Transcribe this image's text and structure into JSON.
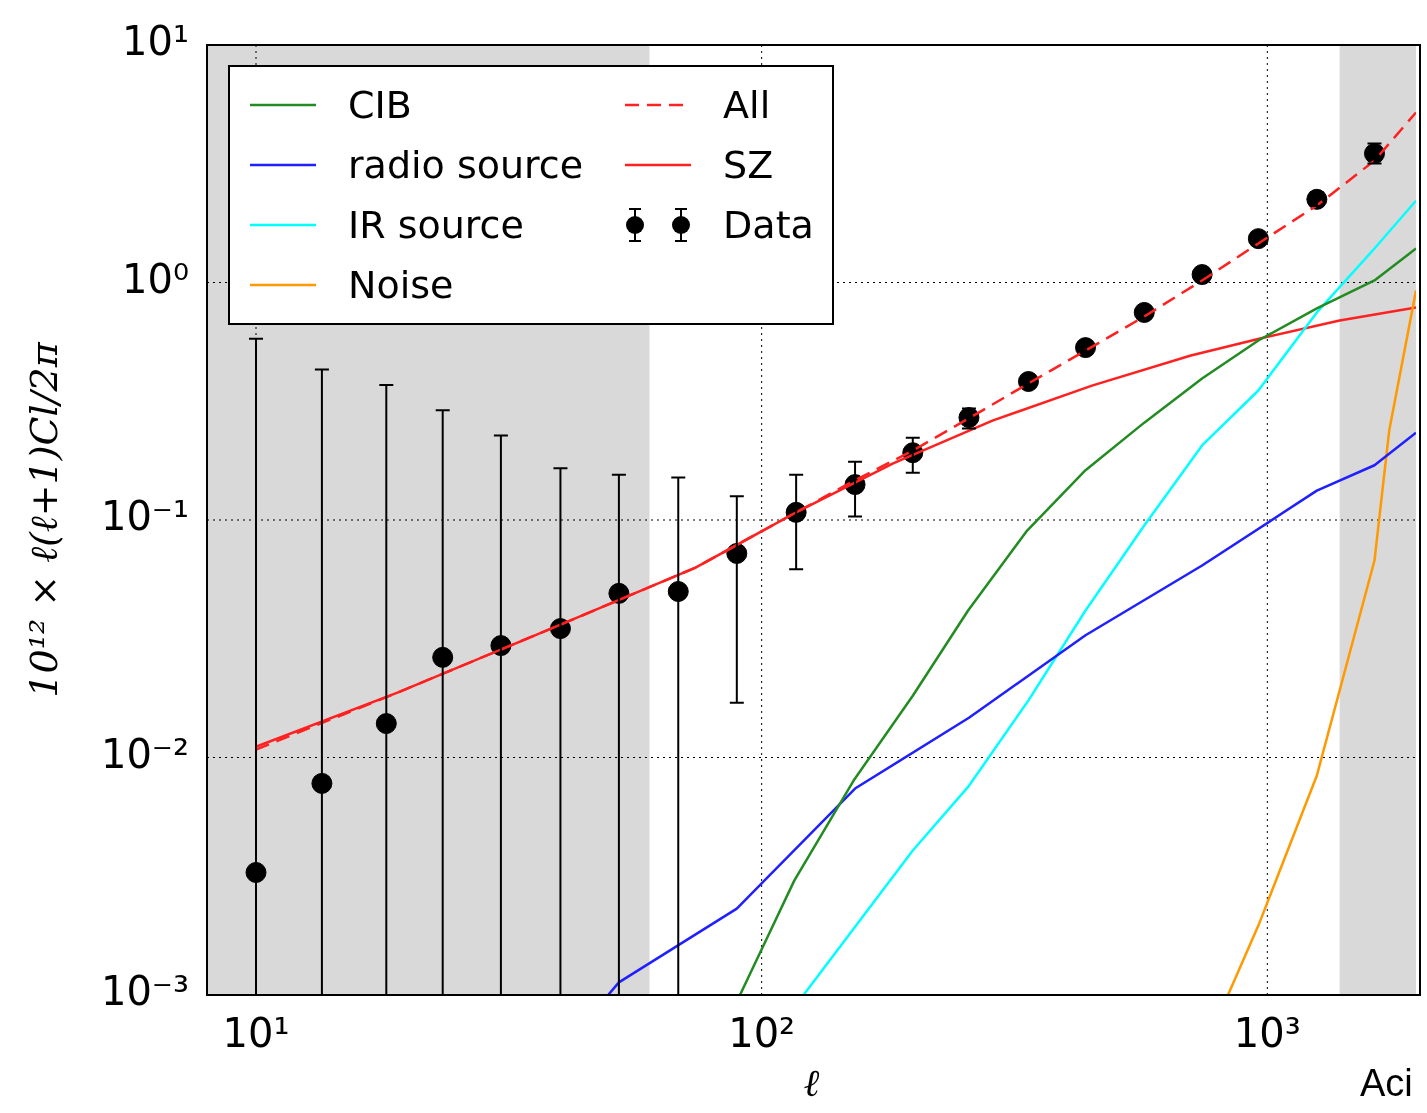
{
  "chart_data": {
    "type": "line",
    "xlabel": "ℓ",
    "ylabel": "10¹² × ℓ(ℓ+1)Cl/2π",
    "log": "xy",
    "grid": true,
    "legend": "top left",
    "xlim": [
      8,
      1968
    ],
    "ylim": [
      0.001,
      10
    ],
    "xticks": [
      {
        "value": 10,
        "label": "10¹"
      },
      {
        "value": 100,
        "label": "10²"
      },
      {
        "value": 1000,
        "label": "10³"
      }
    ],
    "yticks": [
      {
        "value": 0.001,
        "label": "10⁻³"
      },
      {
        "value": 0.01,
        "label": "10⁻²"
      },
      {
        "value": 0.1,
        "label": "10⁻¹"
      },
      {
        "value": 1,
        "label": "10⁰"
      },
      {
        "value": 10,
        "label": "10¹"
      }
    ],
    "bands": [
      {
        "axis": "x",
        "from": 8,
        "to": 60,
        "color": "#d9d9d9"
      },
      {
        "axis": "x",
        "from": 1390,
        "to": 1968,
        "color": "#d9d9d9"
      }
    ],
    "annotations": [
      "Aci"
    ],
    "series": [
      {
        "type": "line",
        "name": "CIB",
        "color": "#228b22",
        "line_style": "solid",
        "x": [
          90.6,
          116,
          152,
          199,
          256,
          335,
          437,
          571,
          743,
          960,
          1253,
          1629,
          1968
        ],
        "values": [
          0.001,
          0.00303,
          0.008,
          0.0182,
          0.0416,
          0.0903,
          0.162,
          0.257,
          0.394,
          0.57,
          0.778,
          1.02,
          1.39
        ]
      },
      {
        "type": "line",
        "name": "radio source",
        "color": "#1f1fff",
        "line_style": "solid",
        "x": [
          49.7,
          52.2,
          89.3,
          153,
          257,
          437,
          743,
          1253,
          1629,
          1968
        ],
        "values": [
          0.001,
          0.00113,
          0.00231,
          0.0074,
          0.0147,
          0.0327,
          0.0643,
          0.133,
          0.17,
          0.233
        ]
      },
      {
        "type": "line",
        "name": "IR source",
        "color": "#00ffff",
        "line_style": "solid",
        "x": [
          121,
          199,
          257,
          337,
          437,
          571,
          743,
          960,
          1253,
          1629,
          1968
        ],
        "values": [
          0.001,
          0.00406,
          0.0076,
          0.0174,
          0.0416,
          0.0948,
          0.206,
          0.351,
          0.748,
          1.39,
          2.21
        ]
      },
      {
        "type": "line",
        "name": "Noise",
        "color": "#ff9900",
        "line_style": "solid",
        "x": [
          836,
          960,
          1253,
          1629,
          1742,
          1968
        ],
        "values": [
          0.001,
          0.00196,
          0.0084,
          0.0675,
          0.238,
          0.925
        ]
      },
      {
        "type": "line",
        "name": "All",
        "color": "#ff2020",
        "line_style": "dashed",
        "x": [
          10,
          19.1,
          37.6,
          74,
          117,
          153,
          199,
          257,
          337,
          437,
          571,
          743,
          960,
          1253,
          1629,
          1968
        ],
        "values": [
          0.0108,
          0.0188,
          0.0343,
          0.063,
          0.1077,
          0.147,
          0.196,
          0.268,
          0.376,
          0.517,
          0.719,
          1.02,
          1.46,
          2.11,
          3.26,
          5.2
        ]
      },
      {
        "type": "line",
        "name": "SZ",
        "color": "#ff2020",
        "line_style": "solid",
        "x": [
          10,
          19.1,
          37.6,
          74,
          117,
          182,
          286,
          450,
          706,
          968,
          1390,
          1968
        ],
        "values": [
          0.0111,
          0.0188,
          0.0343,
          0.063,
          0.1077,
          0.173,
          0.262,
          0.368,
          0.493,
          0.581,
          0.692,
          0.785
        ]
      },
      {
        "type": "scatter",
        "name": "Data",
        "color": "#000000",
        "marker": "circle",
        "x": [
          10,
          13.5,
          18.1,
          23.4,
          30.5,
          40,
          52.2,
          68.4,
          89.3,
          117,
          153,
          199,
          257,
          337,
          437,
          571,
          743,
          960,
          1253,
          1629
        ],
        "values": [
          0.00328,
          0.00778,
          0.0139,
          0.0264,
          0.0296,
          0.0349,
          0.0491,
          0.05,
          0.0723,
          0.1077,
          0.141,
          0.192,
          0.27,
          0.383,
          0.532,
          0.748,
          1.08,
          1.53,
          2.24,
          3.49
        ],
        "errors": [
          [
            0.001,
            0.58
          ],
          [
            0.001,
            0.43
          ],
          [
            0.001,
            0.37
          ],
          [
            0.001,
            0.29
          ],
          [
            0.001,
            0.227
          ],
          [
            0.001,
            0.165
          ],
          [
            0.001,
            0.155
          ],
          [
            0.001,
            0.151
          ],
          [
            0.017,
            0.126
          ],
          [
            0.062,
            0.155
          ],
          [
            0.1035,
            0.176
          ],
          [
            0.158,
            0.222
          ],
          [
            0.243,
            0.295
          ],
          null,
          null,
          null,
          null,
          null,
          [
            2.1,
            2.4
          ],
          [
            3.17,
            3.85
          ]
        ]
      }
    ]
  }
}
